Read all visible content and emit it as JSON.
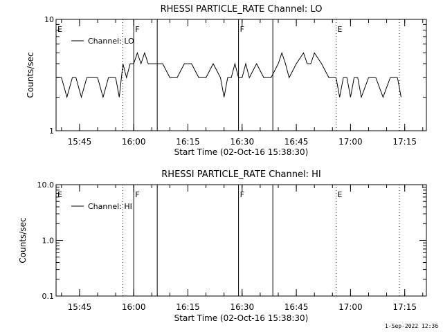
{
  "footer_date": "1-Sep-2022 12:36",
  "chart_data": [
    {
      "type": "line",
      "title": "RHESSI PARTICLE_RATE Channel: LO",
      "xlabel": "Start Time (02-Oct-16 15:38:30)",
      "ylabel": "Counts/sec",
      "yscale": "log",
      "ylim": [
        1,
        10
      ],
      "y_tick_labels": [
        "1",
        "10"
      ],
      "y_ticks": [
        1,
        10
      ],
      "xlim": [
        "15:38:30",
        "17:21:00"
      ],
      "x_tick_labels": [
        "15:45",
        "16:00",
        "16:15",
        "16:30",
        "16:45",
        "17:00",
        "17:15"
      ],
      "x_ticks": [
        "15:45",
        "16:00",
        "16:15",
        "16:30",
        "16:45",
        "17:00",
        "17:15"
      ],
      "legend": {
        "label": "Channel: LO",
        "placement": "top-left"
      },
      "markers": [
        {
          "label": "E",
          "time": "15:38:30",
          "style": "none"
        },
        {
          "label": "",
          "time": "15:57:00",
          "style": "dotted"
        },
        {
          "label": "F",
          "time": "16:00:00",
          "style": "solid"
        },
        {
          "label": "",
          "time": "16:06:30",
          "style": "solid"
        },
        {
          "label": "F",
          "time": "16:29:00",
          "style": "solid"
        },
        {
          "label": "",
          "time": "16:38:30",
          "style": "solid"
        },
        {
          "label": "E",
          "time": "16:56:00",
          "style": "dotted"
        },
        {
          "label": "",
          "time": "17:13:30",
          "style": "dotted"
        }
      ],
      "series": [
        {
          "name": "Channel: LO",
          "x": [
            "15:38:30",
            "15:40:00",
            "15:41:30",
            "15:43:00",
            "15:44:00",
            "15:45:30",
            "15:47:00",
            "15:48:30",
            "15:50:00",
            "15:51:30",
            "15:53:00",
            "15:55:00",
            "15:56:00",
            "15:57:00",
            "15:58:00",
            "15:59:00",
            "16:00:00",
            "16:01:00",
            "16:02:00",
            "16:03:00",
            "16:04:00",
            "16:05:00",
            "16:06:30",
            "16:08:00",
            "16:10:00",
            "16:12:00",
            "16:14:00",
            "16:16:00",
            "16:18:00",
            "16:20:00",
            "16:22:00",
            "16:24:00",
            "16:25:00",
            "16:26:00",
            "16:27:00",
            "16:28:00",
            "16:29:00",
            "16:30:00",
            "16:31:00",
            "16:32:00",
            "16:34:00",
            "16:36:00",
            "16:38:00",
            "16:40:00",
            "16:41:00",
            "16:42:00",
            "16:43:00",
            "16:45:00",
            "16:47:00",
            "16:48:00",
            "16:49:00",
            "16:50:00",
            "16:52:00",
            "16:54:00",
            "16:56:00",
            "16:57:00",
            "16:58:00",
            "16:59:00",
            "17:00:00",
            "17:01:00",
            "17:02:00",
            "17:03:00",
            "17:05:00",
            "17:07:00",
            "17:09:00",
            "17:11:00",
            "17:13:00",
            "17:14:00"
          ],
          "y": [
            3,
            3,
            2,
            3,
            3,
            2,
            3,
            3,
            3,
            2,
            3,
            3,
            2,
            4,
            3,
            4,
            4,
            5,
            4,
            5,
            4,
            4,
            4,
            4,
            3,
            3,
            4,
            4,
            3,
            3,
            4,
            3,
            2,
            3,
            3,
            4,
            3,
            3,
            4,
            3,
            4,
            3,
            3,
            4,
            5,
            4,
            3,
            4,
            5,
            4,
            4,
            5,
            4,
            3,
            3,
            2,
            3,
            3,
            2,
            3,
            3,
            2,
            3,
            3,
            2,
            3,
            3,
            2
          ]
        }
      ]
    },
    {
      "type": "line",
      "title": "RHESSI PARTICLE_RATE Channel: HI",
      "xlabel": "Start Time (02-Oct-16 15:38:30)",
      "ylabel": "Counts/sec",
      "yscale": "log",
      "ylim": [
        0.1,
        10
      ],
      "y_tick_labels": [
        "0.1",
        "1.0",
        "10.0"
      ],
      "y_ticks": [
        0.1,
        1,
        10
      ],
      "xlim": [
        "15:38:30",
        "17:21:00"
      ],
      "x_tick_labels": [
        "15:45",
        "16:00",
        "16:15",
        "16:30",
        "16:45",
        "17:00",
        "17:15"
      ],
      "x_ticks": [
        "15:45",
        "16:00",
        "16:15",
        "16:30",
        "16:45",
        "17:00",
        "17:15"
      ],
      "legend": {
        "label": "Channel: HI",
        "placement": "top-left"
      },
      "markers": [
        {
          "label": "E",
          "time": "15:38:30",
          "style": "none"
        },
        {
          "label": "",
          "time": "15:57:00",
          "style": "dotted"
        },
        {
          "label": "F",
          "time": "16:00:00",
          "style": "solid"
        },
        {
          "label": "",
          "time": "16:06:30",
          "style": "solid"
        },
        {
          "label": "F",
          "time": "16:29:00",
          "style": "solid"
        },
        {
          "label": "",
          "time": "16:38:30",
          "style": "solid"
        },
        {
          "label": "E",
          "time": "16:56:00",
          "style": "dotted"
        },
        {
          "label": "",
          "time": "17:13:30",
          "style": "dotted"
        }
      ],
      "series": [
        {
          "name": "Channel: HI",
          "x": [],
          "y": []
        }
      ]
    }
  ]
}
